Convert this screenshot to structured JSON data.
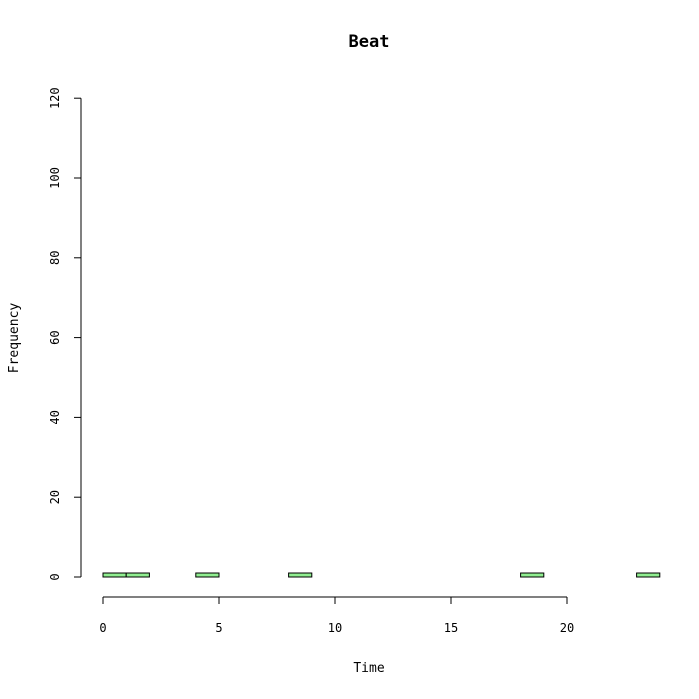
{
  "chart_data": {
    "type": "bar",
    "title": "Beat",
    "xlabel": "Time",
    "ylabel": "Frequency",
    "xlim": [
      0,
      24
    ],
    "ylim": [
      0,
      120
    ],
    "x_ticks": [
      0,
      5,
      10,
      15,
      20
    ],
    "y_ticks": [
      0,
      20,
      40,
      60,
      80,
      100,
      120
    ],
    "bar_color": "#90ee90",
    "bins": [
      {
        "start": 0,
        "end": 1,
        "count": 1
      },
      {
        "start": 1,
        "end": 2,
        "count": 1
      },
      {
        "start": 2,
        "end": 3,
        "count": 0
      },
      {
        "start": 3,
        "end": 4,
        "count": 0
      },
      {
        "start": 4,
        "end": 5,
        "count": 1
      },
      {
        "start": 5,
        "end": 6,
        "count": 0
      },
      {
        "start": 6,
        "end": 7,
        "count": 0
      },
      {
        "start": 7,
        "end": 8,
        "count": 0
      },
      {
        "start": 8,
        "end": 9,
        "count": 1
      },
      {
        "start": 9,
        "end": 10,
        "count": 0
      },
      {
        "start": 10,
        "end": 11,
        "count": 0
      },
      {
        "start": 11,
        "end": 12,
        "count": 0
      },
      {
        "start": 12,
        "end": 13,
        "count": 0
      },
      {
        "start": 13,
        "end": 14,
        "count": 0
      },
      {
        "start": 14,
        "end": 15,
        "count": 0
      },
      {
        "start": 15,
        "end": 16,
        "count": 0
      },
      {
        "start": 16,
        "end": 17,
        "count": 0
      },
      {
        "start": 17,
        "end": 18,
        "count": 0
      },
      {
        "start": 18,
        "end": 19,
        "count": 1
      },
      {
        "start": 19,
        "end": 20,
        "count": 0
      },
      {
        "start": 20,
        "end": 21,
        "count": 0
      },
      {
        "start": 21,
        "end": 22,
        "count": 0
      },
      {
        "start": 22,
        "end": 23,
        "count": 0
      },
      {
        "start": 23,
        "end": 24,
        "count": 1
      }
    ]
  }
}
